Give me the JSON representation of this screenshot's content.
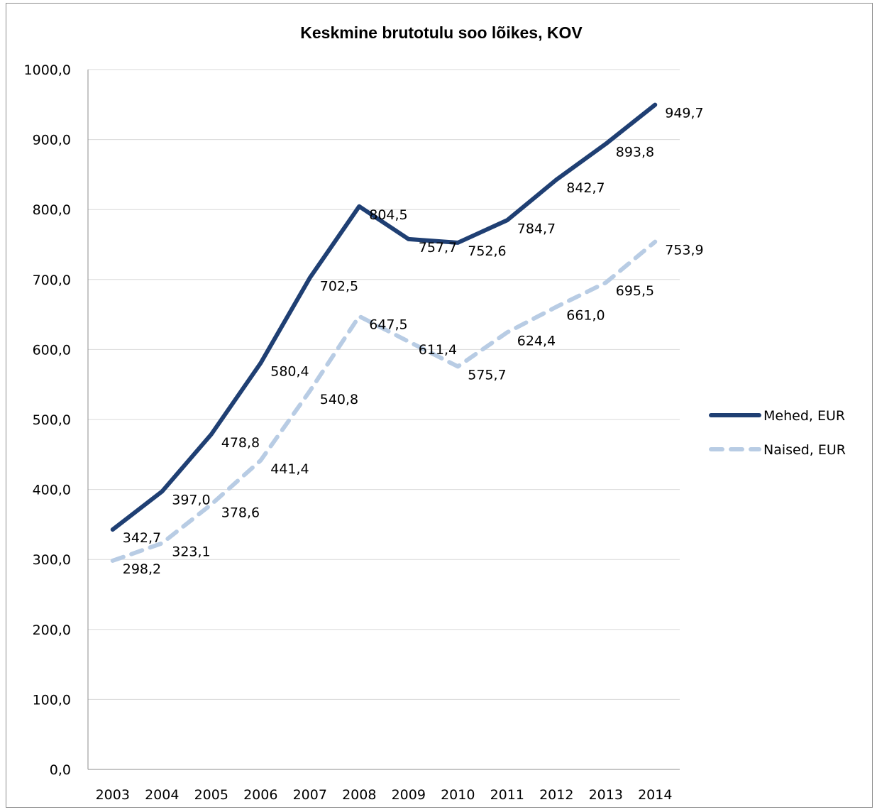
{
  "chart_data": {
    "type": "line",
    "title": "Keskmine brutotulu soo lõikes, KOV",
    "xlabel": "",
    "ylabel": "",
    "categories": [
      "2003",
      "2004",
      "2005",
      "2006",
      "2007",
      "2008",
      "2009",
      "2010",
      "2011",
      "2012",
      "2013",
      "2014"
    ],
    "ylim": [
      0,
      1000
    ],
    "yticks": [
      "0,0",
      "100,0",
      "200,0",
      "300,0",
      "400,0",
      "500,0",
      "600,0",
      "700,0",
      "800,0",
      "900,0",
      "1000,0"
    ],
    "grid": true,
    "legend_position": "right",
    "series": [
      {
        "name": "Mehed, EUR",
        "color": "#1f3f73",
        "style": "solid",
        "values": [
          342.7,
          397.0,
          478.8,
          580.4,
          702.5,
          804.5,
          757.7,
          752.6,
          784.7,
          842.7,
          893.8,
          949.7
        ],
        "labels": [
          "342,7",
          "397,0",
          "478,8",
          "580,4",
          "702,5",
          "804,5",
          "757,7",
          "752,6",
          "784,7",
          "842,7",
          "893,8",
          "949,7"
        ]
      },
      {
        "name": "Naised, EUR",
        "color": "#b8cce4",
        "style": "dashed",
        "values": [
          298.2,
          323.1,
          378.6,
          441.4,
          540.8,
          647.5,
          611.4,
          575.7,
          624.4,
          661.0,
          695.5,
          753.9
        ],
        "labels": [
          "298,2",
          "323,1",
          "378,6",
          "441,4",
          "540,8",
          "647,5",
          "611,4",
          "575,7",
          "624,4",
          "661,0",
          "695,5",
          "753,9"
        ]
      }
    ]
  }
}
